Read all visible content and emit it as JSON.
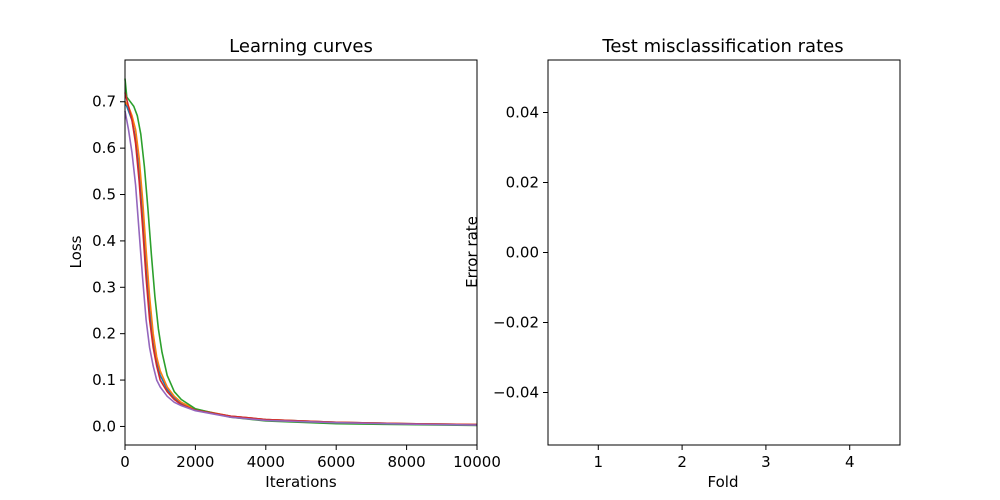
{
  "chart_data": [
    {
      "type": "line",
      "title": "Learning curves",
      "xlabel": "Iterations",
      "ylabel": "Loss",
      "xlim": [
        0,
        10000
      ],
      "ylim": [
        -0.04,
        0.79
      ],
      "xticks": [
        0,
        2000,
        4000,
        6000,
        8000,
        10000
      ],
      "xtick_labels": [
        "0",
        "2000",
        "4000",
        "6000",
        "8000",
        "10000"
      ],
      "yticks": [
        0.0,
        0.1,
        0.2,
        0.3,
        0.4,
        0.5,
        0.6,
        0.7
      ],
      "ytick_labels": [
        "0.0",
        "0.1",
        "0.2",
        "0.3",
        "0.4",
        "0.5",
        "0.6",
        "0.7"
      ],
      "grid": false,
      "series": [
        {
          "color": "#1f77b4",
          "x": [
            0,
            100,
            200,
            300,
            400,
            500,
            600,
            700,
            800,
            900,
            1000,
            1200,
            1400,
            1600,
            2000,
            3000,
            4000,
            6000,
            8000,
            10000
          ],
          "y": [
            0.7,
            0.68,
            0.66,
            0.62,
            0.55,
            0.45,
            0.34,
            0.25,
            0.18,
            0.14,
            0.11,
            0.08,
            0.062,
            0.05,
            0.036,
            0.022,
            0.015,
            0.009,
            0.006,
            0.004
          ]
        },
        {
          "color": "#ff7f0e",
          "x": [
            0,
            100,
            200,
            300,
            400,
            500,
            600,
            700,
            800,
            900,
            1000,
            1200,
            1400,
            1600,
            2000,
            3000,
            4000,
            6000,
            8000,
            10000
          ],
          "y": [
            0.7,
            0.69,
            0.67,
            0.64,
            0.58,
            0.49,
            0.38,
            0.28,
            0.2,
            0.15,
            0.12,
            0.085,
            0.065,
            0.052,
            0.037,
            0.022,
            0.015,
            0.009,
            0.006,
            0.004
          ]
        },
        {
          "color": "#2ca02c",
          "x": [
            0,
            50,
            150,
            250,
            350,
            450,
            550,
            650,
            750,
            850,
            950,
            1050,
            1200,
            1400,
            1600,
            2000,
            3000,
            4000,
            6000,
            8000,
            10000
          ],
          "y": [
            0.75,
            0.71,
            0.7,
            0.69,
            0.67,
            0.63,
            0.56,
            0.47,
            0.37,
            0.28,
            0.21,
            0.16,
            0.11,
            0.075,
            0.058,
            0.038,
            0.02,
            0.012,
            0.006,
            0.004,
            0.002
          ]
        },
        {
          "color": "#d62728",
          "x": [
            0,
            100,
            200,
            300,
            400,
            500,
            600,
            700,
            800,
            900,
            1000,
            1200,
            1400,
            1600,
            2000,
            3000,
            4000,
            6000,
            8000,
            10000
          ],
          "y": [
            0.72,
            0.69,
            0.66,
            0.61,
            0.53,
            0.43,
            0.32,
            0.23,
            0.17,
            0.13,
            0.1,
            0.075,
            0.058,
            0.047,
            0.035,
            0.022,
            0.015,
            0.009,
            0.006,
            0.004
          ]
        },
        {
          "color": "#9467bd",
          "x": [
            0,
            100,
            200,
            300,
            400,
            500,
            600,
            700,
            800,
            900,
            1000,
            1200,
            1400,
            1600,
            2000,
            3000,
            4000,
            6000,
            8000,
            10000
          ],
          "y": [
            0.68,
            0.64,
            0.59,
            0.52,
            0.42,
            0.32,
            0.23,
            0.17,
            0.13,
            0.1,
            0.085,
            0.065,
            0.052,
            0.045,
            0.034,
            0.02,
            0.013,
            0.008,
            0.005,
            0.003
          ]
        }
      ]
    },
    {
      "type": "line",
      "title": "Test misclassification rates",
      "xlabel": "Fold",
      "ylabel": "Error rate",
      "xlim": [
        0.4,
        4.6
      ],
      "ylim": [
        -0.055,
        0.055
      ],
      "xticks": [
        1,
        2,
        3,
        4
      ],
      "xtick_labels": [
        "1",
        "2",
        "3",
        "4"
      ],
      "yticks": [
        -0.04,
        -0.02,
        0.0,
        0.02,
        0.04
      ],
      "ytick_labels": [
        "−0.04",
        "−0.02",
        "0.00",
        "0.02",
        "0.04"
      ],
      "grid": false,
      "series": []
    }
  ]
}
